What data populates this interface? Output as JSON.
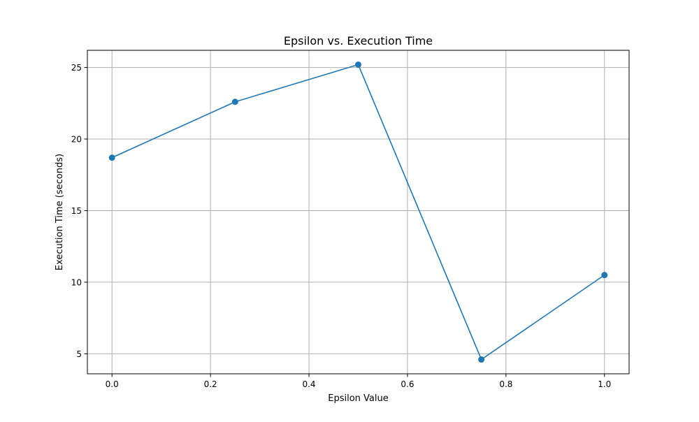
{
  "chart_data": {
    "type": "line",
    "title": "Epsilon vs. Execution Time",
    "xlabel": "Epsilon Value",
    "ylabel": "Execution Time (seconds)",
    "x": [
      0.0,
      0.25,
      0.5,
      0.75,
      1.0
    ],
    "series": [
      {
        "values": [
          18.7,
          22.6,
          25.2,
          4.6,
          10.5
        ],
        "color": "#1f77b4",
        "marker": "circle"
      }
    ],
    "xlim": [
      -0.05,
      1.05
    ],
    "ylim": [
      3.6,
      26.2
    ],
    "xticks": [
      0.0,
      0.2,
      0.4,
      0.6,
      0.8,
      1.0
    ],
    "xtick_labels": [
      "0.0",
      "0.2",
      "0.4",
      "0.6",
      "0.8",
      "1.0"
    ],
    "yticks": [
      5,
      10,
      15,
      20,
      25
    ],
    "ytick_labels": [
      "5",
      "10",
      "15",
      "20",
      "25"
    ],
    "grid": true,
    "legend": "none",
    "grid_color": "#b0b0b0",
    "axis_color": "#000000"
  }
}
